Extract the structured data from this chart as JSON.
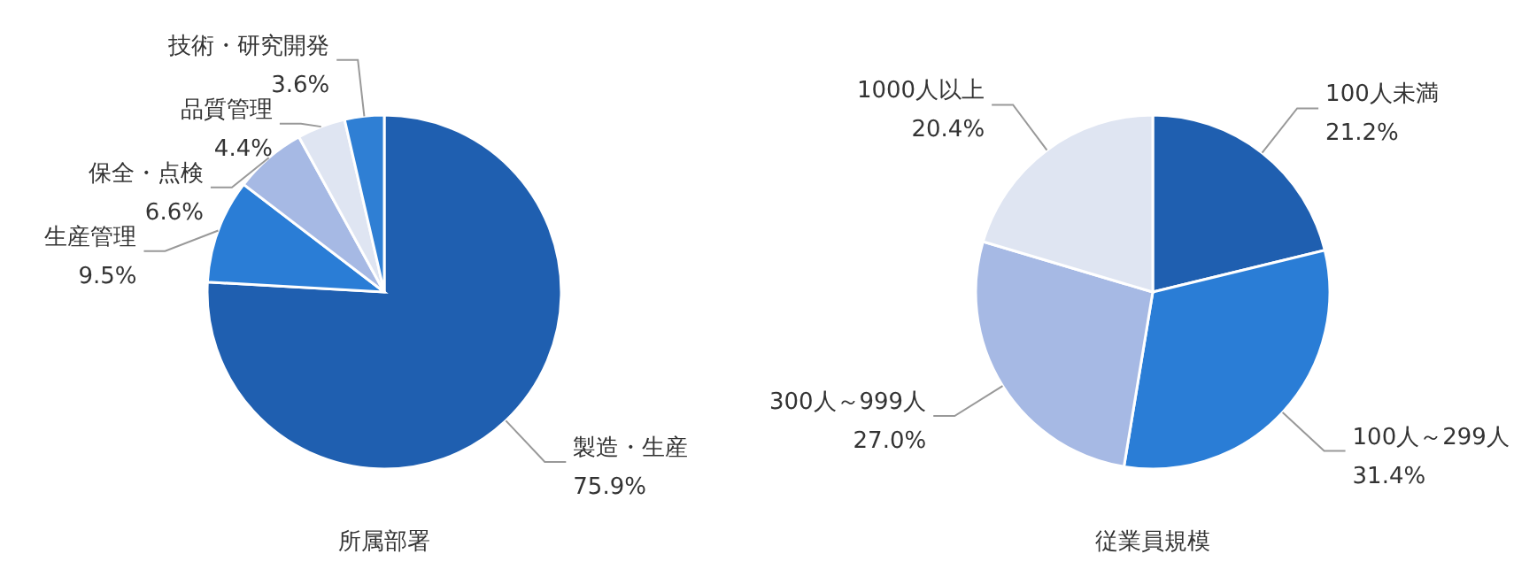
{
  "chart_data": [
    {
      "type": "pie",
      "title": "所属部署",
      "categories": [
        "製造・生産",
        "生産管理",
        "保全・点検",
        "品質管理",
        "技術・研究開発"
      ],
      "values": [
        75.9,
        9.5,
        6.6,
        4.4,
        3.6
      ],
      "value_labels": [
        "75.9%",
        "9.5%",
        "6.6%",
        "4.4%",
        "3.6%"
      ],
      "colors": [
        "#1f5fb0",
        "#2a7dd6",
        "#a6b9e4",
        "#dfe5f2",
        "#2f7fd4"
      ]
    },
    {
      "type": "pie",
      "title": "従業員規模",
      "categories": [
        "100人未満",
        "100人～299人",
        "300人～999人",
        "1000人以上"
      ],
      "values": [
        21.2,
        31.4,
        27.0,
        20.4
      ],
      "value_labels": [
        "21.2%",
        "31.4%",
        "27.0%",
        "20.4%"
      ],
      "colors": [
        "#1f5fb0",
        "#2a7dd6",
        "#a6b9e4",
        "#dfe5f2"
      ]
    }
  ]
}
